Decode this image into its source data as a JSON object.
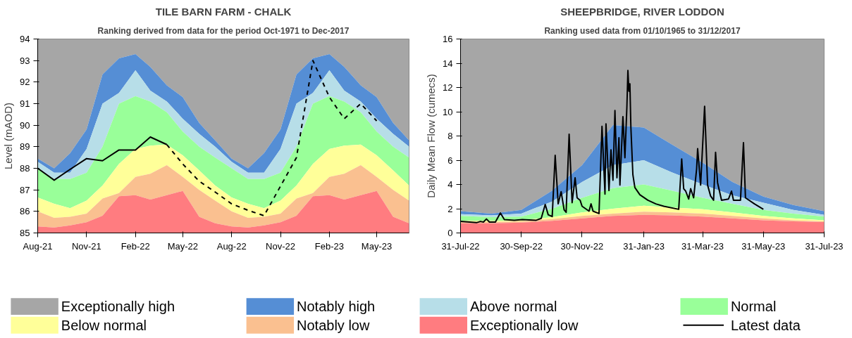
{
  "chart_data": [
    {
      "type": "area",
      "title": "TILE BARN FARM - CHALK",
      "subtitle": "Ranking derived from data for the period Oct-1971 to Dec-2017",
      "ylabel": "Level (mAOD)",
      "legend": "bottom",
      "x": [
        "2021-08",
        "2021-09",
        "2021-10",
        "2021-11",
        "2021-12",
        "2022-01",
        "2022-02",
        "2022-03",
        "2022-04",
        "2022-05",
        "2022-06",
        "2022-07",
        "2022-08",
        "2022-09",
        "2022-10",
        "2022-11",
        "2022-12",
        "2023-01",
        "2023-02",
        "2023-03",
        "2023-04",
        "2023-05",
        "2023-06",
        "2023-07"
      ],
      "xlim": [
        "2021-08",
        "2023-07"
      ],
      "xticks": [
        {
          "value": "2021-08",
          "label": "Aug-21"
        },
        {
          "value": "2021-11",
          "label": "Nov-21"
        },
        {
          "value": "2022-02",
          "label": "Feb-22"
        },
        {
          "value": "2022-05",
          "label": "May-22"
        },
        {
          "value": "2022-08",
          "label": "Aug-22"
        },
        {
          "value": "2022-11",
          "label": "Nov-22"
        },
        {
          "value": "2023-02",
          "label": "Feb-23"
        },
        {
          "value": "2023-05",
          "label": "May-23"
        }
      ],
      "ylim": [
        85,
        94
      ],
      "yticks": [
        85,
        86,
        87,
        88,
        89,
        90,
        91,
        92,
        93,
        94
      ],
      "series": [
        {
          "name": "Exceptionally high",
          "color": "#a6a6a6",
          "values": [
            94,
            94,
            94,
            94,
            94,
            94,
            94,
            94,
            94,
            94,
            94,
            94,
            94,
            94,
            94,
            94,
            94,
            94,
            94,
            94,
            94,
            94,
            94,
            94
          ]
        },
        {
          "name": "Notably high",
          "color": "#558ed5",
          "values": [
            88.45,
            88.0,
            88.7,
            89.8,
            92.35,
            93.1,
            93.3,
            92.7,
            91.85,
            91.3,
            90.1,
            89.3,
            88.45,
            88.0,
            88.7,
            89.8,
            92.35,
            93.1,
            93.3,
            92.7,
            91.85,
            91.3,
            90.1,
            89.3
          ]
        },
        {
          "name": "Above normal",
          "color": "#b7dee8",
          "values": [
            88.3,
            87.8,
            87.8,
            88.9,
            91.0,
            91.5,
            92.55,
            91.6,
            91.1,
            90.3,
            89.6,
            89.0,
            88.3,
            87.8,
            87.8,
            88.9,
            91.0,
            91.5,
            92.55,
            91.6,
            91.1,
            90.3,
            89.6,
            89.0
          ]
        },
        {
          "name": "Normal",
          "color": "#99ff99",
          "values": [
            88.0,
            87.5,
            87.5,
            87.8,
            89.0,
            91.0,
            91.35,
            91.1,
            90.6,
            89.7,
            89.0,
            88.5,
            88.0,
            87.5,
            87.5,
            87.8,
            89.0,
            91.0,
            91.35,
            91.1,
            90.6,
            89.7,
            89.0,
            88.5
          ]
        },
        {
          "name": "Below normal",
          "color": "#ffff99",
          "values": [
            86.65,
            86.35,
            86.15,
            86.5,
            87.2,
            88.2,
            88.9,
            89.05,
            89.1,
            88.6,
            87.9,
            87.2,
            86.65,
            86.35,
            86.15,
            86.5,
            87.2,
            88.2,
            88.9,
            89.05,
            89.1,
            88.6,
            87.9,
            87.2
          ]
        },
        {
          "name": "Notably low",
          "color": "#fac090",
          "values": [
            86.0,
            85.7,
            85.75,
            85.9,
            86.6,
            86.85,
            87.6,
            87.75,
            88.15,
            87.6,
            87.0,
            86.5,
            86.0,
            85.7,
            85.75,
            85.9,
            86.6,
            86.85,
            87.6,
            87.75,
            88.15,
            87.6,
            87.0,
            86.5
          ]
        },
        {
          "name": "Exceptionally low",
          "color": "#ff7c80",
          "values": [
            85.3,
            85.25,
            85.35,
            85.5,
            85.8,
            86.7,
            86.75,
            86.55,
            86.75,
            86.95,
            85.75,
            85.45,
            85.3,
            85.25,
            85.35,
            85.5,
            85.8,
            86.7,
            86.75,
            86.55,
            86.75,
            86.95,
            85.75,
            85.45
          ]
        },
        {
          "name": "Latest data",
          "type": "line",
          "color": "#000000",
          "line_style": "solid",
          "x": [
            "2021-08",
            "2021-09",
            "2021-10",
            "2021-11",
            "2021-12",
            "2022-01",
            "2022-02",
            "2022-03",
            "2022-04"
          ],
          "values": [
            88.0,
            87.45,
            87.95,
            88.45,
            88.35,
            88.85,
            88.85,
            89.45,
            89.1
          ]
        },
        {
          "type": "line",
          "color": "#000000",
          "line_style": "dashed",
          "x": [
            "2022-04",
            "2022-05",
            "2022-06",
            "2022-07",
            "2022-08",
            "2022-09",
            "2022-10",
            "2022-12",
            "2023-01",
            "2023-02",
            "2023-03",
            "2023-04",
            "2023-05"
          ],
          "values": [
            89.1,
            88.2,
            87.4,
            86.9,
            86.35,
            86.05,
            85.8,
            88.5,
            93.0,
            91.3,
            90.3,
            91.0,
            90.2
          ]
        }
      ]
    },
    {
      "type": "area",
      "title": "SHEEPBRIDGE, RIVER LODDON",
      "subtitle": "Ranking used data from 01/10/1965 to 31/12/2017",
      "ylabel": "Daily Mean Flow (cumecs)",
      "x": [
        "2022-07-31",
        "2022-08-31",
        "2022-09-30",
        "2022-10-31",
        "2022-11-30",
        "2022-12-31",
        "2023-01-31",
        "2023-02-28",
        "2023-03-31",
        "2023-04-30",
        "2023-05-31",
        "2023-06-30",
        "2023-07-31"
      ],
      "xlim": [
        "2022-07-31",
        "2023-07-31"
      ],
      "xticks": [
        {
          "value": "2022-07-31",
          "label": "31-Jul-22"
        },
        {
          "value": "2022-09-30",
          "label": "30-Sep-22"
        },
        {
          "value": "2022-11-30",
          "label": "30-Nov-22"
        },
        {
          "value": "2023-01-31",
          "label": "31-Jan-23"
        },
        {
          "value": "2023-03-31",
          "label": "31-Mar-23"
        },
        {
          "value": "2023-05-31",
          "label": "31-May-23"
        },
        {
          "value": "2023-07-31",
          "label": "31-Jul-23"
        }
      ],
      "ylim": [
        0,
        16
      ],
      "yticks": [
        0,
        2,
        4,
        6,
        8,
        10,
        12,
        14,
        16
      ],
      "series": [
        {
          "color": "#a6a6a6",
          "values": [
            16,
            16,
            16,
            16,
            16,
            16,
            16,
            16,
            16,
            16,
            16,
            16,
            16
          ]
        },
        {
          "color": "#558ed5",
          "values": [
            1.8,
            1.6,
            1.9,
            3.5,
            5.6,
            8.9,
            8.7,
            7.3,
            5.8,
            4.2,
            3.0,
            2.3,
            1.8
          ]
        },
        {
          "color": "#b7dee8",
          "values": [
            1.55,
            1.45,
            1.6,
            2.6,
            4.2,
            5.6,
            6.0,
            5.0,
            4.0,
            3.1,
            2.5,
            1.9,
            1.5
          ]
        },
        {
          "color": "#99ff99",
          "values": [
            1.4,
            1.3,
            1.35,
            2.0,
            2.9,
            3.7,
            4.0,
            3.5,
            2.9,
            2.4,
            1.9,
            1.6,
            1.35
          ]
        },
        {
          "color": "#ffff99",
          "values": [
            1.0,
            1.0,
            1.05,
            1.3,
            1.7,
            2.0,
            2.25,
            2.1,
            1.95,
            1.7,
            1.4,
            1.2,
            1.05
          ]
        },
        {
          "color": "#fac090",
          "values": [
            0.9,
            0.9,
            0.95,
            1.15,
            1.4,
            1.6,
            1.75,
            1.7,
            1.6,
            1.4,
            1.2,
            1.05,
            0.95
          ]
        },
        {
          "color": "#ff7c80",
          "values": [
            0.8,
            0.8,
            0.85,
            1.0,
            1.2,
            1.4,
            1.5,
            1.45,
            1.35,
            1.2,
            1.05,
            0.95,
            0.9
          ]
        },
        {
          "type": "line",
          "color": "#000000",
          "line_style": "solid",
          "x": [
            "2022-07-31",
            "2022-08-16",
            "2022-08-20",
            "2022-08-23",
            "2022-08-26",
            "2022-08-29",
            "2022-09-04",
            "2022-09-09",
            "2022-09-13",
            "2022-09-23",
            "2022-10-01",
            "2022-10-15",
            "2022-10-20",
            "2022-10-24",
            "2022-10-27",
            "2022-10-31",
            "2022-11-03",
            "2022-11-06",
            "2022-11-09",
            "2022-11-12",
            "2022-11-14",
            "2022-11-17",
            "2022-11-20",
            "2022-11-23",
            "2022-11-25",
            "2022-11-28",
            "2022-11-30",
            "2022-12-07",
            "2022-12-09",
            "2022-12-11",
            "2022-12-17",
            "2022-12-20",
            "2022-12-23",
            "2022-12-24",
            "2022-12-27",
            "2022-12-29",
            "2022-12-31",
            "2023-01-02",
            "2023-01-04",
            "2023-01-06",
            "2023-01-07",
            "2023-01-10",
            "2023-01-12",
            "2023-01-14",
            "2023-01-15",
            "2023-01-16",
            "2023-01-17",
            "2023-01-18",
            "2023-01-20",
            "2023-01-22",
            "2023-01-27",
            "2023-02-04",
            "2023-02-12",
            "2023-02-20",
            "2023-03-07",
            "2023-03-10",
            "2023-03-12",
            "2023-03-14",
            "2023-03-17",
            "2023-03-19",
            "2023-03-22",
            "2023-03-25",
            "2023-03-26",
            "2023-03-29",
            "2023-04-02",
            "2023-04-05",
            "2023-04-08",
            "2023-04-11",
            "2023-04-13",
            "2023-04-15",
            "2023-04-19",
            "2023-04-26",
            "2023-04-29",
            "2023-05-01",
            "2023-05-08",
            "2023-05-11",
            "2023-05-13",
            "2023-05-22",
            "2023-05-31"
          ],
          "values": [
            0.95,
            0.85,
            0.95,
            0.9,
            1.15,
            0.9,
            0.9,
            1.65,
            1.1,
            1.05,
            1.1,
            1.05,
            1.2,
            2.35,
            1.5,
            1.35,
            6.4,
            2.4,
            3.4,
            1.9,
            1.7,
            8.15,
            2.5,
            4.55,
            2.9,
            2.7,
            2.2,
            1.8,
            2.4,
            1.8,
            1.6,
            8.8,
            3.2,
            9.0,
            3.5,
            6.85,
            4.35,
            10.1,
            4.55,
            7.85,
            3.95,
            9.6,
            6.2,
            10.45,
            13.4,
            11.7,
            12.3,
            8.7,
            4.8,
            3.75,
            3.15,
            2.7,
            2.4,
            2.2,
            1.95,
            6.1,
            3.65,
            3.45,
            2.8,
            3.65,
            2.9,
            5.3,
            6.95,
            3.95,
            10.45,
            3.95,
            3.05,
            2.7,
            6.65,
            4.15,
            2.7,
            2.8,
            3.45,
            2.7,
            2.7,
            7.45,
            2.9,
            2.4,
            1.95
          ]
        }
      ]
    }
  ]
}
